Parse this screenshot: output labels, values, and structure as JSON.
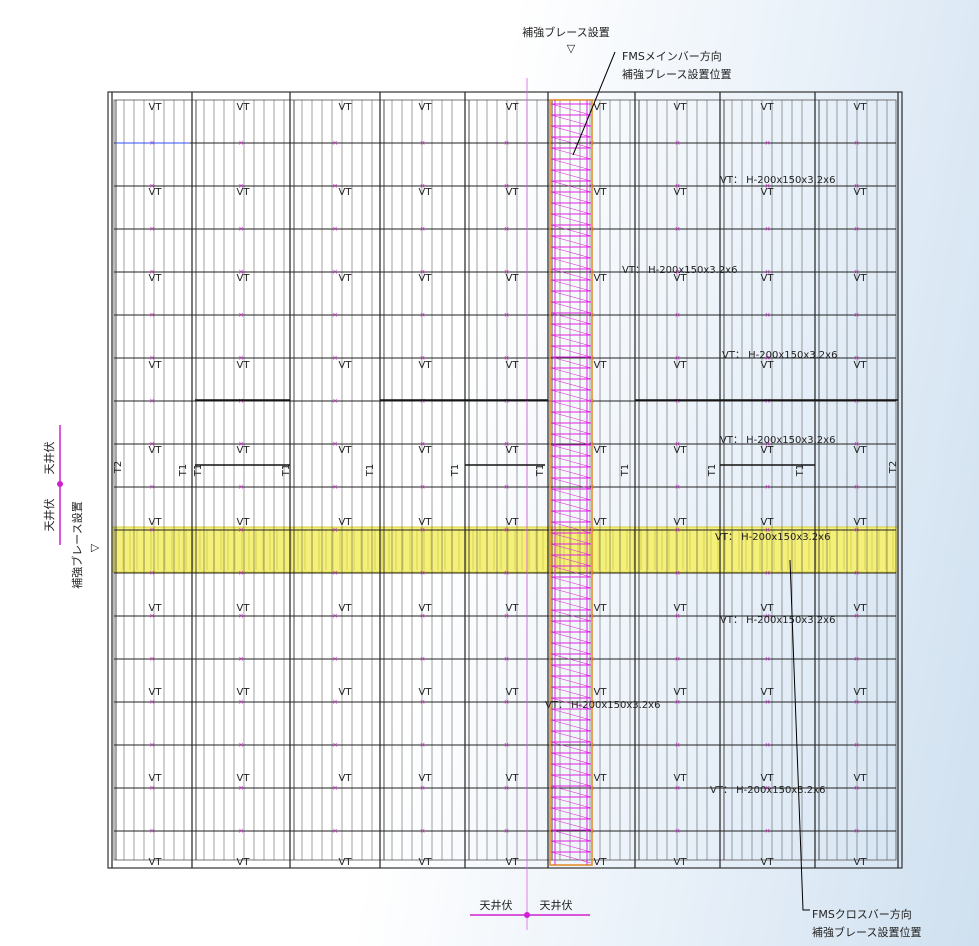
{
  "top_note": {
    "title": "補強ブレース設置",
    "marker": "▽"
  },
  "main_bar_note": {
    "line1": "FMSメインバー方向",
    "line2": "補強ブレース設置位置"
  },
  "cross_bar_note": {
    "line1": "FMSクロスバー方向",
    "line2": "補強ブレース設置位置"
  },
  "left_note": {
    "title": "補強ブレース設置",
    "marker": "▽"
  },
  "section_marks": {
    "bottom_left": "天井伏",
    "bottom_right": "天井伏",
    "left_upper": "天井伏",
    "left_lower": "天井伏"
  },
  "member_label": "VT",
  "edge_labels": [
    "T2",
    "T2"
  ],
  "t1_label": "T1",
  "spec_labels": [
    "VT： H-200x150x3.2x6",
    "VT： H-200x150x3.2x6",
    "VT： H-200x150x3.2x6",
    "VT： H-200x150x3.2x6",
    "VT： H-200x150x3.2x6",
    "VT： H-200x150x3.2x6",
    "VT： H-200x150x3.2x6",
    "VT： H-200x150x3.2x6"
  ]
}
